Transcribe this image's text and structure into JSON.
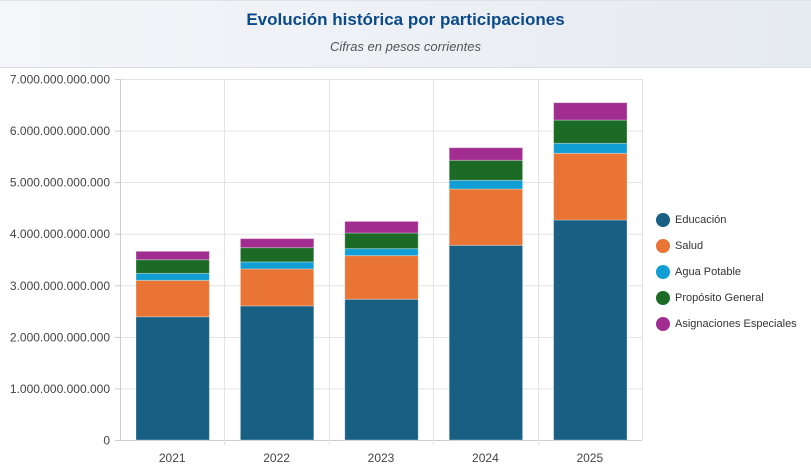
{
  "chart_data": {
    "type": "bar",
    "stacked": true,
    "title": "Evolución histórica por participaciones",
    "subtitle": "Cifras en pesos corrientes",
    "xlabel": "",
    "ylabel": "",
    "categories": [
      "2021",
      "2022",
      "2023",
      "2024",
      "2025"
    ],
    "ylim": [
      0,
      7000000000000
    ],
    "yticks": [
      "0",
      "1.000.000.000.000",
      "2.000.000.000.000",
      "3.000.000.000.000",
      "4.000.000.000.000",
      "5.000.000.000.000",
      "6.000.000.000.000",
      "7.000.000.000.000"
    ],
    "grid": true,
    "legend_position": "right",
    "series": [
      {
        "name": "Educación",
        "color": "#175f83",
        "values": [
          2390000000000,
          2600000000000,
          2730000000000,
          3775000000000,
          4266000000000
        ]
      },
      {
        "name": "Salud",
        "color": "#e97434",
        "values": [
          706000000000,
          717000000000,
          845000000000,
          1092000000000,
          1293000000000
        ]
      },
      {
        "name": "Agua Potable",
        "color": "#109ed4",
        "values": [
          136000000000,
          136000000000,
          136000000000,
          169000000000,
          194000000000
        ]
      },
      {
        "name": "Propósito General",
        "color": "#1b6b26",
        "values": [
          264000000000,
          277000000000,
          303000000000,
          388000000000,
          451000000000
        ]
      },
      {
        "name": "Asignaciones Especiales",
        "color": "#a22d91",
        "values": [
          163000000000,
          175000000000,
          225000000000,
          244000000000,
          337000000000
        ]
      }
    ]
  }
}
